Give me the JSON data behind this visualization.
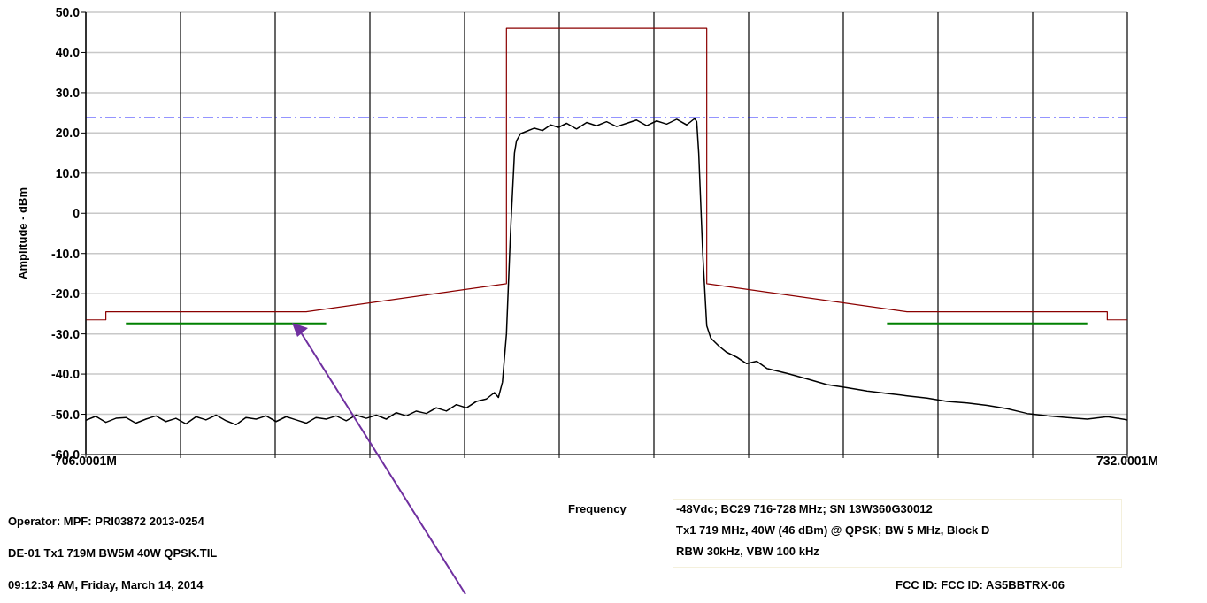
{
  "chart_data": {
    "type": "line",
    "xlabel": "Frequency",
    "ylabel": "Amplitude  - dBm",
    "xlim": [
      706.0001,
      732.0001
    ],
    "xticks": [
      {
        "value": 706.0001,
        "label": "706.0001M"
      },
      {
        "value": 708.3637,
        "label": null
      },
      {
        "value": 710.7274,
        "label": null
      },
      {
        "value": 713.091,
        "label": null
      },
      {
        "value": 715.4546,
        "label": null
      },
      {
        "value": 717.8183,
        "label": null
      },
      {
        "value": 720.1819,
        "label": null
      },
      {
        "value": 722.5456,
        "label": null
      },
      {
        "value": 724.9092,
        "label": null
      },
      {
        "value": 727.2728,
        "label": null
      },
      {
        "value": 729.6365,
        "label": null
      },
      {
        "value": 732.0001,
        "label": "732.0001M"
      }
    ],
    "ylim": [
      -60,
      50
    ],
    "yticks": [
      {
        "value": -60,
        "label": "-60.0"
      },
      {
        "value": -50,
        "label": "-50.0"
      },
      {
        "value": -40,
        "label": "-40.0"
      },
      {
        "value": -30,
        "label": "-30.0"
      },
      {
        "value": -20,
        "label": "-20.0"
      },
      {
        "value": -10,
        "label": "-10.0"
      },
      0,
      {
        "value": 10,
        "label": "10.0"
      },
      {
        "value": 20,
        "label": "20.0"
      },
      {
        "value": 30,
        "label": "30.0"
      },
      {
        "value": 40,
        "label": "40.0"
      },
      {
        "value": 50,
        "label": "50.0"
      }
    ],
    "grid": true,
    "marker": "none",
    "line_style": "solid",
    "series": [
      {
        "color": "#000000",
        "x": [
          706.0001,
          706.25,
          706.5,
          706.75,
          707,
          707.25,
          707.5,
          707.75,
          708,
          708.25,
          708.5,
          708.75,
          709,
          709.25,
          709.5,
          709.75,
          710,
          710.25,
          710.5,
          710.75,
          711,
          711.25,
          711.5,
          711.75,
          712,
          712.25,
          712.5,
          712.75,
          713,
          713.25,
          713.5,
          713.75,
          714,
          714.25,
          714.5,
          714.75,
          715,
          715.25,
          715.5,
          715.75,
          716,
          716.2,
          716.3,
          716.4,
          716.5,
          716.6,
          716.7,
          716.75,
          716.85,
          717,
          717.2,
          717.4,
          717.6,
          717.8,
          718,
          718.25,
          718.5,
          718.75,
          719,
          719.25,
          719.5,
          719.75,
          720,
          720.25,
          720.5,
          720.75,
          721,
          721.2,
          721.25,
          721.3,
          721.4,
          721.5,
          721.6,
          721.8,
          722,
          722.25,
          722.5,
          722.75,
          723,
          723.5,
          724,
          724.5,
          725,
          725.5,
          726,
          726.5,
          727,
          727.5,
          728,
          728.5,
          729,
          729.5,
          730,
          730.5,
          731,
          731.5,
          732.0001
        ],
        "values": [
          -51.5,
          -50.5,
          -52,
          -51,
          -50.8,
          -52.2,
          -51.2,
          -50.4,
          -51.8,
          -51,
          -52.4,
          -50.6,
          -51.4,
          -50.2,
          -51.6,
          -52.6,
          -50.8,
          -51.2,
          -50.4,
          -51.8,
          -50.6,
          -51.4,
          -52.2,
          -50.8,
          -51.2,
          -50.4,
          -51.6,
          -50.2,
          -51,
          -50.2,
          -51.2,
          -49.6,
          -50.4,
          -49.2,
          -49.8,
          -48.4,
          -49.2,
          -47.6,
          -48.4,
          -46.8,
          -46.2,
          -44.6,
          -45.8,
          -42,
          -30,
          -5,
          15,
          18,
          19.8,
          20.4,
          21.2,
          20.6,
          22,
          21.4,
          22.4,
          21,
          22.6,
          21.8,
          22.8,
          21.6,
          22.4,
          23.2,
          21.8,
          23,
          22.2,
          23.4,
          22,
          23.6,
          22.8,
          15,
          -10,
          -28,
          -31,
          -33,
          -34.6,
          -35.8,
          -37.4,
          -36.8,
          -38.6,
          -39.8,
          -41.2,
          -42.6,
          -43.4,
          -44.2,
          -44.8,
          -45.4,
          -46,
          -46.8,
          -47.2,
          -47.8,
          -48.6,
          -49.8,
          -50.4,
          -50.8,
          -51.2,
          -50.6,
          -51.4
        ]
      },
      {
        "color": "#8b0000",
        "x": [
          706.0001,
          706.5,
          706.5,
          711.5,
          716.5,
          716.5,
          721.5,
          721.5,
          726.5,
          731.5,
          731.5,
          732.0001
        ],
        "values": [
          -26.5,
          -26.5,
          -24.5,
          -24.5,
          -17.5,
          46,
          46,
          -17.5,
          -24.5,
          -24.5,
          -26.5,
          -26.5
        ]
      },
      {
        "color": "#008000",
        "x": [
          707,
          712,
          719,
          726,
          731
        ],
        "values": [
          -27.5,
          -27.5,
          null,
          -27.5,
          -27.5
        ]
      }
    ],
    "ref_lines": [
      {
        "axis": "y",
        "value": 23.8,
        "color": "#0000ff",
        "line_style": "dashed"
      }
    ],
    "annotations": [
      "Operator: MPF: PRI03872 2013-0254",
      "DE-01 Tx1 719M BW5M 40W QPSK.TIL",
      "09:12:34 AM, Friday, March 14, 2014",
      "-48Vdc; BC29 716-728 MHz; SN 13W360G30012",
      "Tx1 719 MHz, 40W (46 dBm) @ QPSK; BW 5 MHz, Block D",
      "RBW 30kHz, VBW 100 kHz",
      "FCC ID: FCC ID: AS5BBTRX-06"
    ]
  }
}
